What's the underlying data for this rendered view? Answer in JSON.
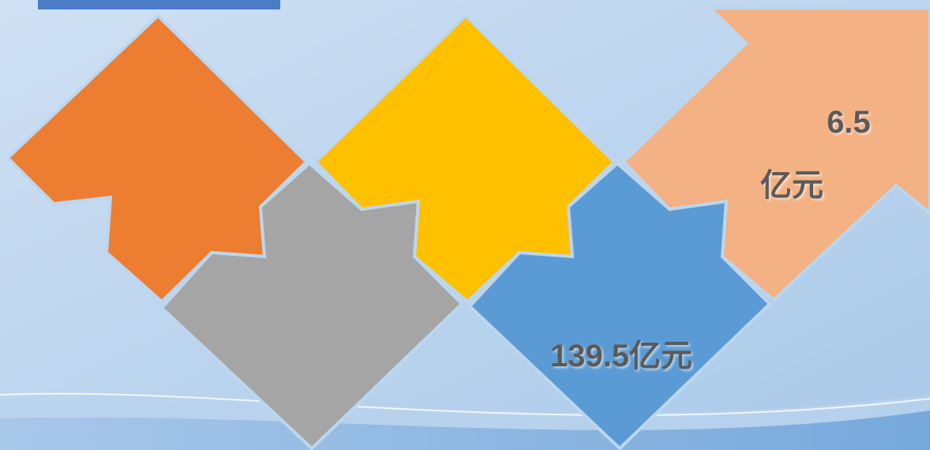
{
  "shapes": [
    {
      "name": "orange-piece"
    },
    {
      "name": "gray-piece"
    },
    {
      "name": "yellow-piece"
    },
    {
      "name": "blue-piece",
      "label": "139.5亿元"
    },
    {
      "name": "peach-piece",
      "lines": [
        "6.5",
        "亿元"
      ]
    }
  ]
}
